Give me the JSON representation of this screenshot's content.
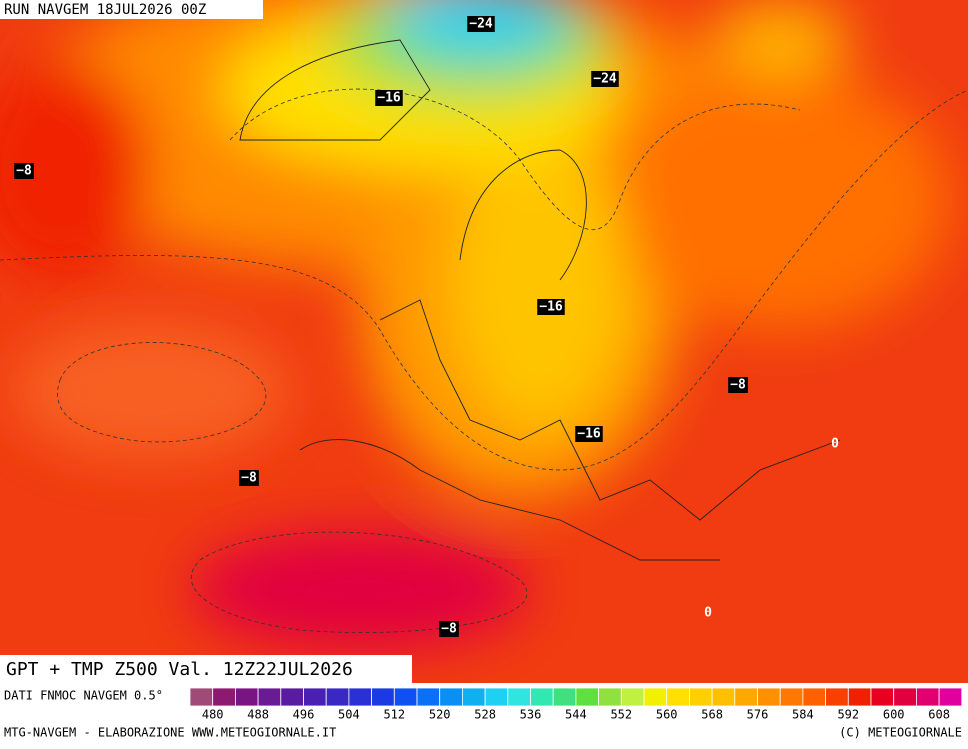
{
  "header": {
    "run": "RUN NAVGEM 18JUL2026 00Z",
    "title": "GPT + TMP Z500 Val. 12Z22JUL2026"
  },
  "map_labels": [
    "−24",
    "−24",
    "−16",
    "−8",
    "−16",
    "−8",
    "−16",
    "0",
    "−8",
    "0",
    "−8"
  ],
  "colorbar": {
    "source": "DATI FNMOC NAVGEM 0.5°",
    "colors": [
      "#a04a78",
      "#8c1a70",
      "#7a1482",
      "#6a1a92",
      "#5a1aa2",
      "#4a20b2",
      "#3a28c4",
      "#2a30d4",
      "#1a3ae4",
      "#1050f2",
      "#0a70f6",
      "#0a90f2",
      "#10b0f0",
      "#20d0f0",
      "#30e4e0",
      "#30e8b0",
      "#40e080",
      "#60e040",
      "#90e040",
      "#c0f040",
      "#f0f000",
      "#ffe000",
      "#ffd000",
      "#ffc000",
      "#ffa800",
      "#ff9000",
      "#ff7800",
      "#ff6000",
      "#f84000",
      "#f02000",
      "#e80020",
      "#e00040",
      "#e00070",
      "#e000a0"
    ],
    "labels": [
      480,
      488,
      496,
      504,
      512,
      520,
      528,
      536,
      544,
      552,
      560,
      568,
      576,
      584,
      592,
      600,
      608
    ]
  },
  "footer": {
    "left": "MTG-NAVGEM - ELABORAZIONE WWW.METEOGIORNALE.IT",
    "right": "(C) METEOGIORNALE"
  }
}
